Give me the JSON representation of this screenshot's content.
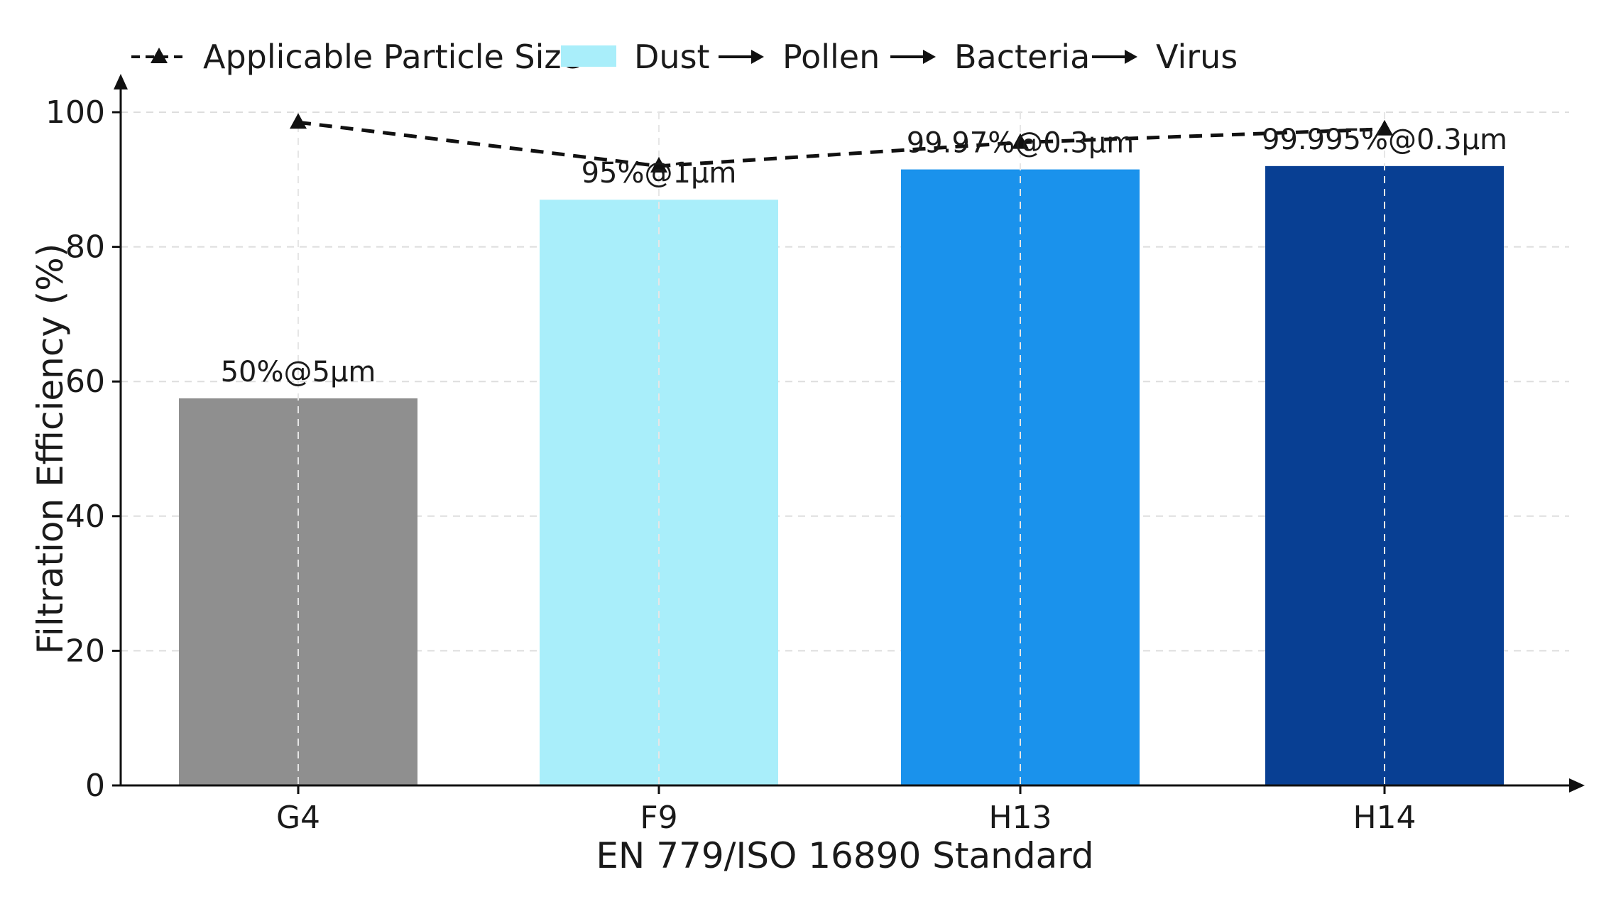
{
  "chart_data": {
    "type": "bar",
    "categories": [
      "G4",
      "F9",
      "H13",
      "H14"
    ],
    "values": [
      57.5,
      87,
      91.5,
      92
    ],
    "bar_colors": [
      "#8f8f8f",
      "#a9eefa",
      "#1a92ec",
      "#083f93"
    ],
    "bar_labels": [
      "50%@5μm",
      "95%@1μm",
      "99.97%@0.3μm",
      "99.995%@0.3μm"
    ],
    "series": [
      {
        "values": [
          98.5,
          92,
          95.5,
          97.5
        ],
        "style": "dashed",
        "marker": "triangle",
        "color": "#111111"
      }
    ],
    "xlabel": "EN 779/ISO 16890 Standard",
    "ylabel": "Filtration Efficiency (%)",
    "ylim": [
      0,
      100
    ],
    "yticks": [
      0,
      20,
      40,
      60,
      80,
      100
    ],
    "grid": true,
    "grid_style": "dashed",
    "legend": {
      "placement": "top",
      "line_entry": "Applicable Particle Size",
      "patch_entry": "Dust",
      "sequence": [
        "Pollen",
        "Bacteria",
        "Virus"
      ]
    }
  }
}
